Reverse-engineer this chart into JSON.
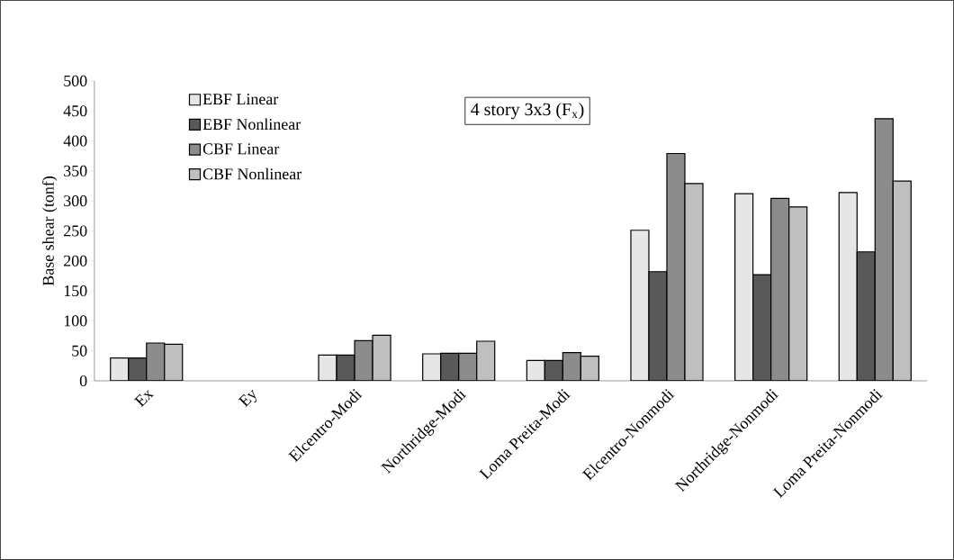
{
  "chart_data": {
    "type": "bar",
    "title": "4 story 3x3 (F$_{x}$)",
    "ylabel": "Base shear (tonf)",
    "categories": [
      "Ex",
      "Ey",
      "Elcentro-Modi",
      "Northridge-Modi",
      "Loma Preita-Modi",
      "Elcentro-Nonmodi",
      "Northridge-Nonmodi",
      "Loma Preita-Nonmodi"
    ],
    "series": [
      {
        "name": "EBF Linear",
        "color": "#e6e6e6",
        "values": [
          38,
          null,
          43,
          45,
          34,
          251,
          312,
          314
        ]
      },
      {
        "name": "EBF Nonlinear",
        "color": "#595959",
        "values": [
          38,
          null,
          43,
          46,
          34,
          182,
          177,
          215
        ]
      },
      {
        "name": "CBF Linear",
        "color": "#8c8c8c",
        "values": [
          63,
          null,
          67,
          46,
          47,
          379,
          304,
          437
        ]
      },
      {
        "name": "CBF Nonlinear",
        "color": "#bfbfbf",
        "values": [
          61,
          null,
          76,
          66,
          41,
          329,
          290,
          333
        ]
      }
    ],
    "ylim": [
      0,
      500
    ],
    "yticks": [
      0,
      50,
      100,
      150,
      200,
      250,
      300,
      350,
      400,
      450,
      500
    ],
    "legend": "top left",
    "grid": false
  }
}
